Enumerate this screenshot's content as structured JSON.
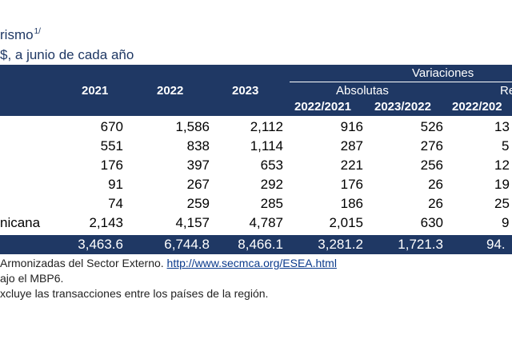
{
  "title": "rismo",
  "title_sup": "1/",
  "subtitle": "$, a junio de cada año",
  "header": {
    "variaciones": "Variaciones",
    "absolutas": "Absolutas",
    "relativas": "Re",
    "years": [
      "2021",
      "2022",
      "2023"
    ],
    "var_cols": [
      "2022/2021",
      "2023/2022",
      "2022/202"
    ]
  },
  "rows": [
    {
      "label": "",
      "v2021": "670",
      "v2022": "1,586",
      "v2023": "2,112",
      "abs1": "916",
      "abs2": "526",
      "rel1": "13"
    },
    {
      "label": "",
      "v2021": "551",
      "v2022": "838",
      "v2023": "1,114",
      "abs1": "287",
      "abs2": "276",
      "rel1": "5"
    },
    {
      "label": "",
      "v2021": "176",
      "v2022": "397",
      "v2023": "653",
      "abs1": "221",
      "abs2": "256",
      "rel1": "12"
    },
    {
      "label": "",
      "v2021": "91",
      "v2022": "267",
      "v2023": "292",
      "abs1": "176",
      "abs2": "26",
      "rel1": "19"
    },
    {
      "label": "",
      "v2021": "74",
      "v2022": "259",
      "v2023": "285",
      "abs1": "186",
      "abs2": "26",
      "rel1": "25"
    },
    {
      "label": "nicana",
      "v2021": "2,143",
      "v2022": "4,157",
      "v2023": "4,787",
      "abs1": "2,015",
      "abs2": "630",
      "rel1": "9"
    }
  ],
  "total": {
    "v2021": "3,463.6",
    "v2022": "6,744.8",
    "v2023": "8,466.1",
    "abs1": "3,281.2",
    "abs2": "1,721.3",
    "rel1": "94."
  },
  "notes": {
    "line1_text": "Armonizadas del Sector Externo. ",
    "line1_link": "http://www.secmca.org/ESEA.html",
    "line2": "ajo el MBP6.",
    "line3": "xcluye las transacciones entre los países de la región."
  }
}
